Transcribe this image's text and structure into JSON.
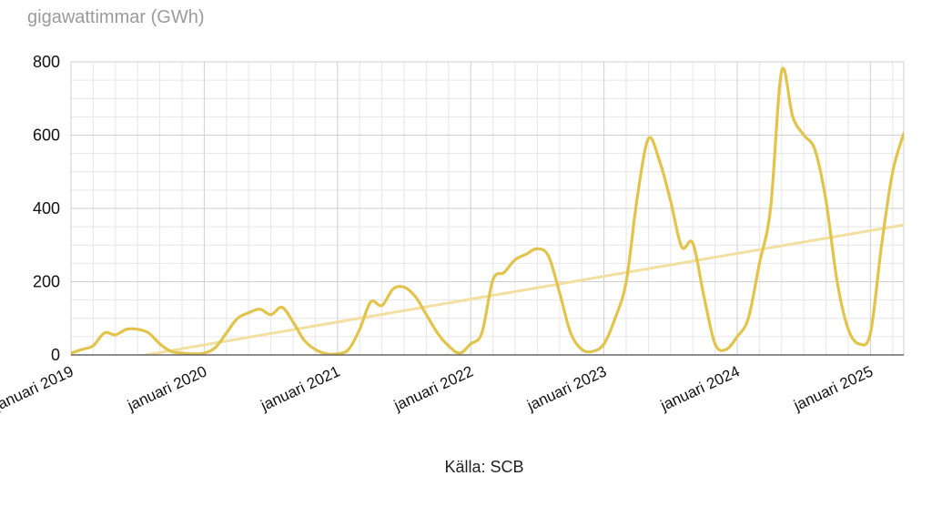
{
  "unit_label": "gigawattimmar (GWh)",
  "source": "Källa: SCB",
  "colors": {
    "series": "#e2c44a",
    "trend": "#f3dfa0",
    "grid_major": "#cfcfcf",
    "grid_minor": "#e6e6e6",
    "axis": "#666666"
  },
  "chart_data": {
    "type": "line",
    "title": "",
    "xlabel": "",
    "ylabel": "gigawattimmar (GWh)",
    "ylim": [
      0,
      800
    ],
    "yticks": [
      0,
      200,
      400,
      600,
      800
    ],
    "xlim": [
      "2019-01",
      "2025-04"
    ],
    "xticks": [
      {
        "date": "2019-01",
        "label": "januari 2019"
      },
      {
        "date": "2020-01",
        "label": "januari 2020"
      },
      {
        "date": "2021-01",
        "label": "januari 2021"
      },
      {
        "date": "2022-01",
        "label": "januari 2022"
      },
      {
        "date": "2023-01",
        "label": "januari 2023"
      },
      {
        "date": "2024-01",
        "label": "januari 2024"
      },
      {
        "date": "2025-01",
        "label": "januari 2025"
      }
    ],
    "grid": true,
    "series": [
      {
        "x": [
          "2019-01",
          "2019-02",
          "2019-03",
          "2019-04",
          "2019-05",
          "2019-06",
          "2019-07",
          "2019-08",
          "2019-09",
          "2019-10",
          "2019-11",
          "2019-12",
          "2020-01",
          "2020-02",
          "2020-03",
          "2020-04",
          "2020-05",
          "2020-06",
          "2020-07",
          "2020-08",
          "2020-09",
          "2020-10",
          "2020-11",
          "2020-12",
          "2021-01",
          "2021-02",
          "2021-03",
          "2021-04",
          "2021-05",
          "2021-06",
          "2021-07",
          "2021-08",
          "2021-09",
          "2021-10",
          "2021-11",
          "2021-12",
          "2022-01",
          "2022-02",
          "2022-03",
          "2022-04",
          "2022-05",
          "2022-06",
          "2022-07",
          "2022-08",
          "2022-09",
          "2022-10",
          "2022-11",
          "2022-12",
          "2023-01",
          "2023-02",
          "2023-03",
          "2023-04",
          "2023-05",
          "2023-06",
          "2023-07",
          "2023-08",
          "2023-09",
          "2023-10",
          "2023-11",
          "2023-12",
          "2024-01",
          "2024-02",
          "2024-03",
          "2024-04",
          "2024-05",
          "2024-06",
          "2024-07",
          "2024-08",
          "2024-09",
          "2024-10",
          "2024-11",
          "2024-12",
          "2025-01",
          "2025-02",
          "2025-03",
          "2025-04"
        ],
        "values": [
          5,
          15,
          25,
          60,
          55,
          70,
          70,
          60,
          30,
          10,
          5,
          3,
          5,
          20,
          60,
          100,
          115,
          125,
          110,
          130,
          90,
          40,
          15,
          3,
          3,
          15,
          70,
          145,
          135,
          180,
          185,
          160,
          110,
          60,
          25,
          5,
          30,
          60,
          205,
          225,
          260,
          275,
          290,
          270,
          170,
          60,
          15,
          10,
          30,
          100,
          200,
          430,
          590,
          530,
          420,
          295,
          305,
          160,
          30,
          15,
          50,
          100,
          250,
          400,
          775,
          650,
          600,
          560,
          420,
          200,
          70,
          30,
          60,
          300,
          500,
          605
        ]
      },
      {
        "x": [
          "2019-01",
          "2025-04"
        ],
        "values": [
          -35,
          355
        ]
      }
    ]
  }
}
